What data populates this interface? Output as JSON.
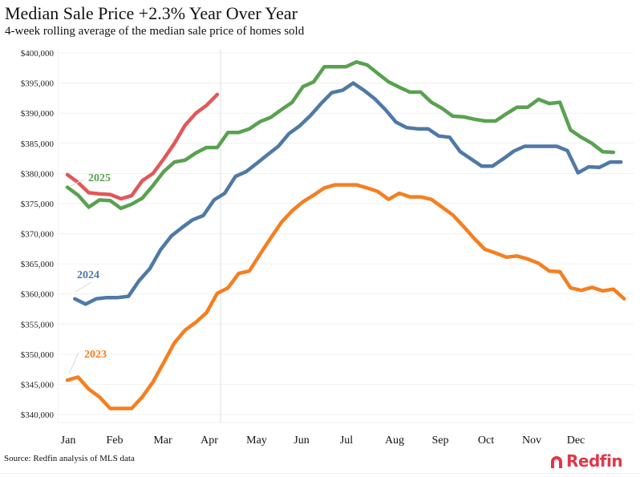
{
  "header": {
    "title": "Median Sale Price +2.3% Year Over Year",
    "subtitle": "4-week rolling average of the median sale price of homes sold"
  },
  "footer": {
    "source": "Source: Redfin analysis of MLS data",
    "logo_text": "Redfin",
    "logo_color": "#e0374a"
  },
  "chart_data": {
    "type": "line",
    "title": "Median Sale Price +2.3% Year Over Year",
    "subtitle": "4-week rolling average of the median sale price of homes sold",
    "xlabel": "",
    "ylabel": "",
    "x_unit": "week of year",
    "x_ticks": [
      "Jan",
      "Feb",
      "Mar",
      "Apr",
      "May",
      "Jun",
      "Jul",
      "Aug",
      "Sep",
      "Oct",
      "Nov",
      "Dec"
    ],
    "y_ticks": [
      "$340,000",
      "$345,000",
      "$350,000",
      "$355,000",
      "$360,000",
      "$365,000",
      "$370,000",
      "$375,000",
      "$380,000",
      "$385,000",
      "$390,000",
      "$395,000",
      "$400,000"
    ],
    "ylim": [
      340000,
      400000
    ],
    "grid": true,
    "legend": "inline-labels",
    "annotation": "vertical reference line at current week (mid-April)",
    "series": [
      {
        "name": "2023",
        "label": "2023",
        "color": "#f57f20",
        "start_week": 0,
        "values": [
          345700,
          346200,
          344200,
          342900,
          341000,
          341000,
          341000,
          342900,
          345400,
          348600,
          351900,
          354000,
          355300,
          356900,
          360100,
          361000,
          363400,
          363800,
          366600,
          369300,
          371900,
          373800,
          375300,
          376400,
          377600,
          378100,
          378100,
          378100,
          377600,
          377000,
          375700,
          376700,
          376100,
          376100,
          375700,
          374400,
          373100,
          371200,
          369200,
          367400,
          366800,
          366100,
          366300,
          365800,
          365100,
          363800,
          363700,
          361000,
          360600,
          361100,
          360500,
          360800,
          359200
        ]
      },
      {
        "name": "2024",
        "label": "2024",
        "color": "#4f79a6",
        "start_week": 0.7,
        "values": [
          359200,
          358300,
          359200,
          359400,
          359400,
          359600,
          362200,
          364200,
          367300,
          369600,
          371000,
          372300,
          373000,
          375600,
          376700,
          379500,
          380300,
          381700,
          383100,
          384500,
          386600,
          387900,
          389600,
          391600,
          393400,
          393800,
          395000,
          393800,
          392400,
          390600,
          388500,
          387600,
          387400,
          387400,
          386200,
          386000,
          383600,
          382400,
          381200,
          381200,
          382400,
          383700,
          384500,
          384500,
          384500,
          384500,
          383800,
          380100,
          381100,
          381000,
          381900,
          381900
        ]
      },
      {
        "name": "2025",
        "label": "2025",
        "color": "#59a14f",
        "start_week": 0,
        "values": [
          377700,
          376400,
          374400,
          375600,
          375500,
          374200,
          374900,
          375900,
          378000,
          380300,
          381900,
          382200,
          383400,
          384300,
          384300,
          386800,
          386800,
          387400,
          388600,
          389300,
          390600,
          391800,
          394400,
          395200,
          397700,
          397700,
          397700,
          398500,
          398000,
          396600,
          395200,
          394300,
          393500,
          393500,
          391800,
          390800,
          389500,
          389400,
          389000,
          388700,
          388700,
          389900,
          391000,
          391000,
          392300,
          391600,
          391800,
          387200,
          386000,
          385000,
          383600,
          383500
        ]
      },
      {
        "name": "current-year",
        "label": "",
        "color": "#e15759",
        "start_week": 0,
        "values": [
          379800,
          378500,
          376800,
          376600,
          376500,
          375800,
          376300,
          378800,
          380000,
          382400,
          385000,
          388000,
          390000,
          391300,
          393100
        ]
      }
    ]
  }
}
